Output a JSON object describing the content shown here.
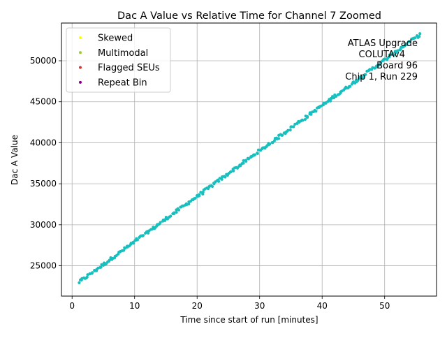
{
  "chart_data": {
    "type": "scatter",
    "title": "Dac A Value vs Relative Time for Channel 7 Zoomed",
    "xlabel": "Time since start of run [minutes]",
    "ylabel": "Dac A Value",
    "xlim": [
      -1.7,
      58.3
    ],
    "ylim": [
      21300,
      54600
    ],
    "xticks": [
      0,
      10,
      20,
      30,
      40,
      50
    ],
    "yticks": [
      25000,
      30000,
      35000,
      40000,
      45000,
      50000
    ],
    "grid": true,
    "legend_position": "top-left",
    "legend": [
      {
        "label": "Skewed",
        "color": "#ffff00"
      },
      {
        "label": "Multimodal",
        "color": "#9acd32"
      },
      {
        "label": "Flagged SEUs",
        "color": "#e03030"
      },
      {
        "label": "Repeat Bin",
        "color": "#800080"
      }
    ],
    "annotation": [
      "ATLAS Upgrade",
      "COLUTAv4",
      "Board 96",
      "Chip 1, Run 229"
    ],
    "series": [
      {
        "color": "#17bfbf",
        "x_start": 1.1,
        "y_start": 23000,
        "x_end": 55.6,
        "y_end": 53200,
        "points": 300
      }
    ]
  }
}
